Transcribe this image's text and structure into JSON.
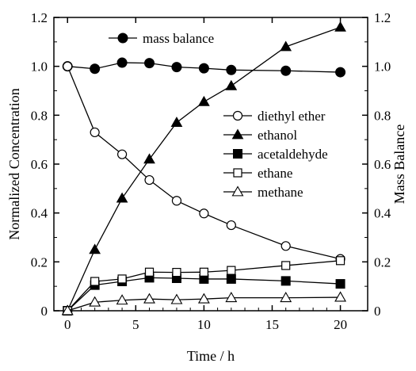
{
  "chart_data": {
    "type": "line",
    "xlabel": "Time / h",
    "ylabel": "Normalized Concentration",
    "y2label": "Mass Balance",
    "xlim": [
      -1,
      22
    ],
    "ylim": [
      0,
      1.2
    ],
    "y2lim": [
      0,
      1.2
    ],
    "xticks": [
      "0",
      "5",
      "10",
      "15",
      "20"
    ],
    "yticks": [
      "0",
      "0.2",
      "0.4",
      "0.6",
      "0.8",
      "1.0",
      "1.2"
    ],
    "y2ticks": [
      "0",
      "0.2",
      "0.4",
      "0.6",
      "0.8",
      "1.0",
      "1.2"
    ],
    "grid": false,
    "legend_position": "right",
    "series": [
      {
        "name": "mass balance",
        "marker": "circle-filled",
        "axis": "right",
        "x": [
          0,
          2,
          4,
          6,
          8,
          10,
          12,
          16,
          20
        ],
        "values": [
          1.0,
          0.99,
          1.015,
          1.013,
          0.997,
          0.992,
          0.985,
          0.982,
          0.976
        ]
      },
      {
        "name": "diethyl ether",
        "marker": "circle-open",
        "axis": "left",
        "x": [
          0,
          2,
          4,
          6,
          8,
          10,
          12,
          16,
          20
        ],
        "values": [
          1.0,
          0.73,
          0.64,
          0.535,
          0.45,
          0.398,
          0.35,
          0.265,
          0.212
        ]
      },
      {
        "name": "ethanol",
        "marker": "triangle-filled",
        "axis": "left",
        "x": [
          0,
          2,
          4,
          6,
          8,
          10,
          12,
          16,
          20
        ],
        "values": [
          0.0,
          0.25,
          0.46,
          0.62,
          0.77,
          0.855,
          0.92,
          1.08,
          1.16
        ]
      },
      {
        "name": "acetaldehyde",
        "marker": "square-filled",
        "axis": "left",
        "x": [
          0,
          2,
          4,
          6,
          8,
          10,
          12,
          16,
          20
        ],
        "values": [
          0.0,
          0.105,
          0.12,
          0.135,
          0.133,
          0.13,
          0.13,
          0.122,
          0.11
        ]
      },
      {
        "name": "ethane",
        "marker": "square-open",
        "axis": "left",
        "x": [
          0,
          2,
          4,
          6,
          8,
          10,
          12,
          16,
          20
        ],
        "values": [
          0.0,
          0.12,
          0.13,
          0.158,
          0.157,
          0.158,
          0.165,
          0.185,
          0.205
        ]
      },
      {
        "name": "methane",
        "marker": "triangle-open",
        "axis": "left",
        "x": [
          0,
          2,
          4,
          6,
          8,
          10,
          12,
          16,
          20
        ],
        "values": [
          0.0,
          0.035,
          0.043,
          0.048,
          0.045,
          0.048,
          0.053,
          0.053,
          0.055
        ]
      }
    ]
  }
}
